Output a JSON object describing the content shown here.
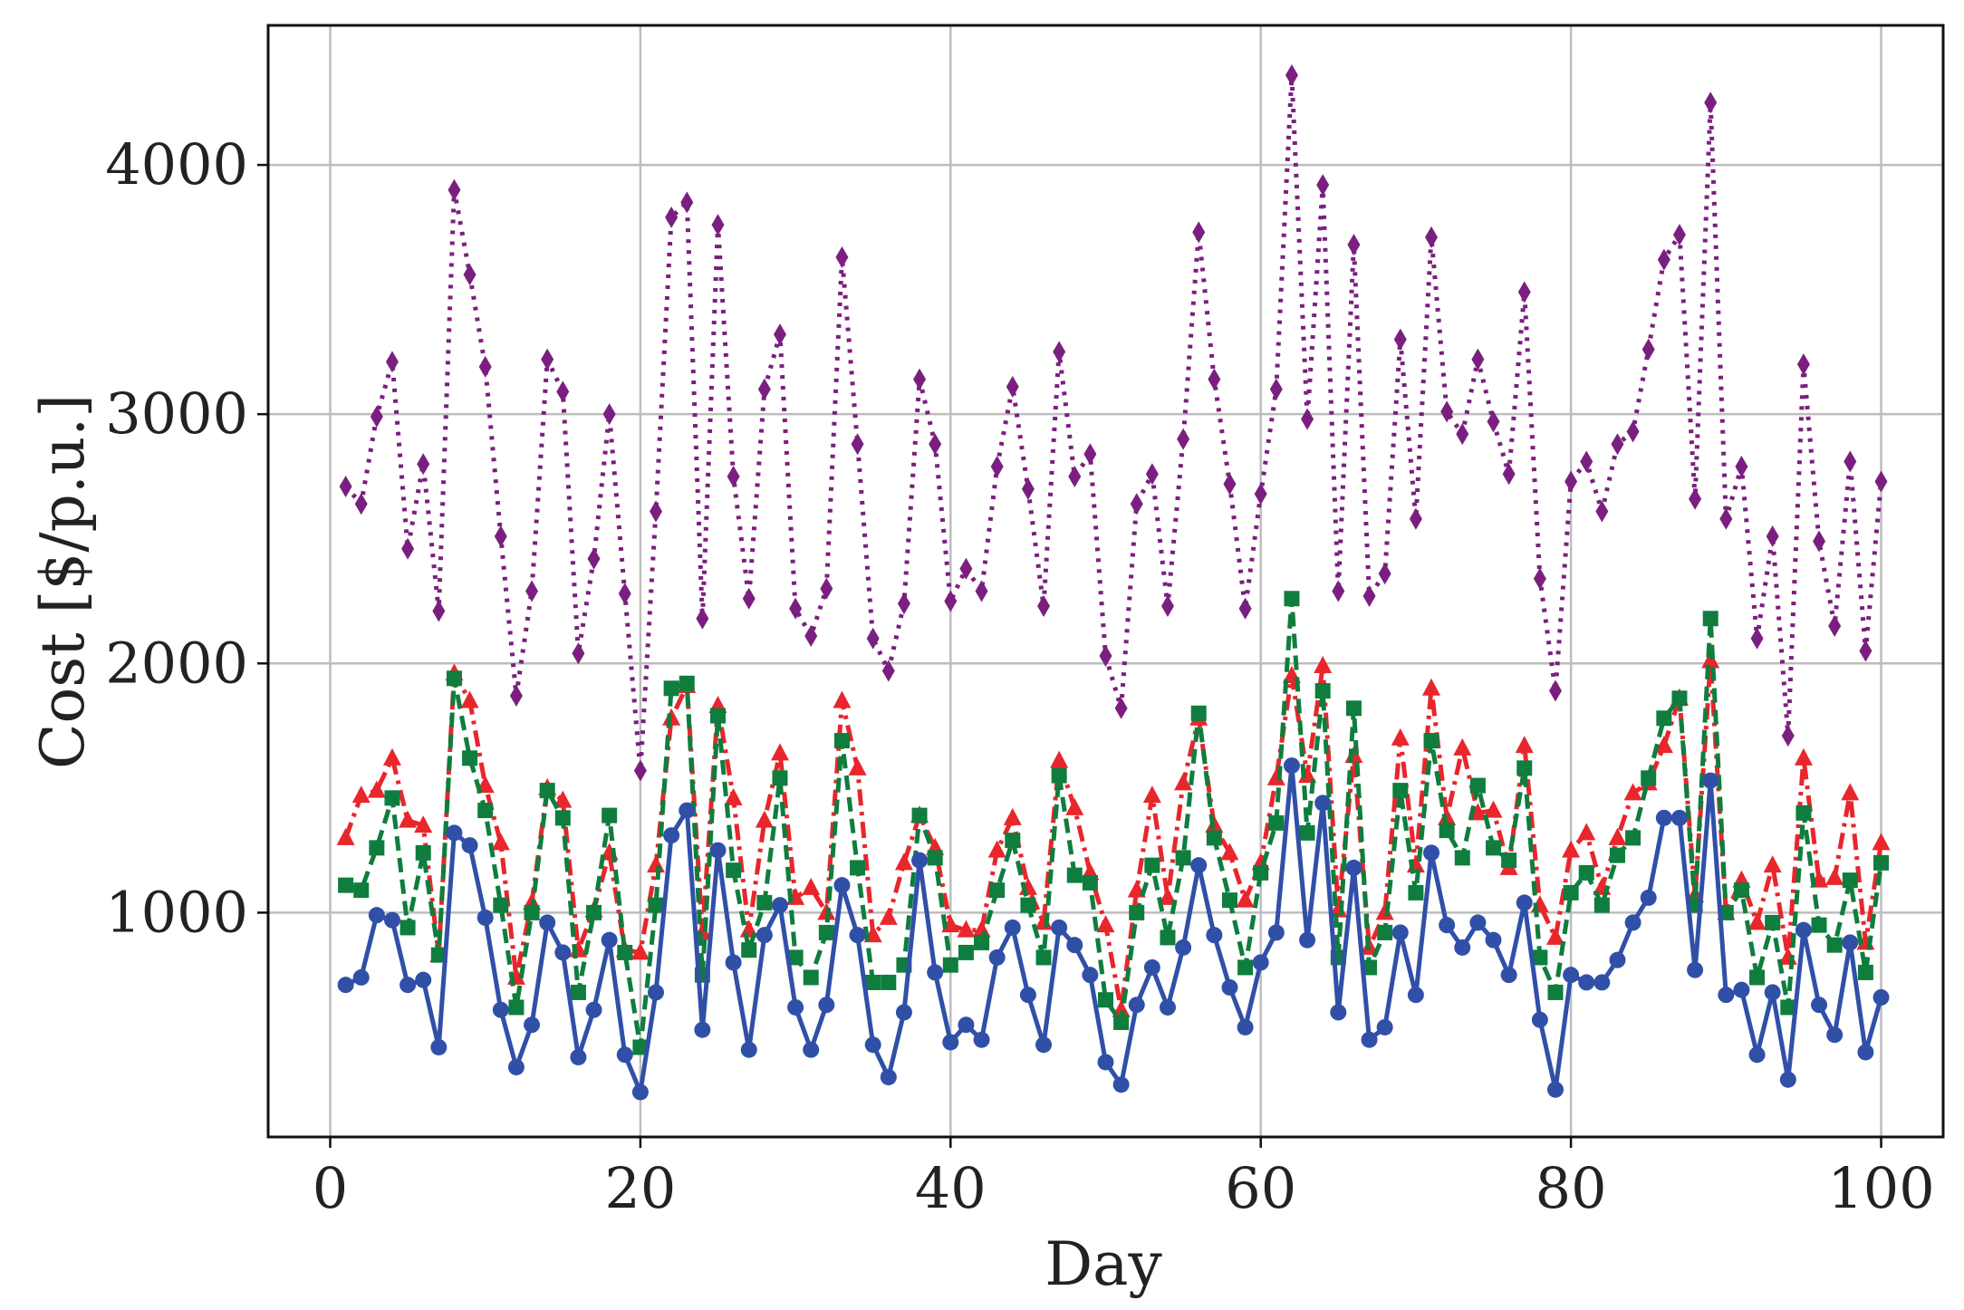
{
  "chart_data": {
    "type": "line",
    "title": "",
    "xlabel": "Day",
    "ylabel": "Cost [$/p.u.]",
    "xlim": [
      -4,
      104
    ],
    "ylim": [
      100,
      4560
    ],
    "xticks": [
      0,
      20,
      40,
      60,
      80,
      100
    ],
    "yticks": [
      1000,
      2000,
      3000,
      4000
    ],
    "xtick_labels": [
      "0",
      "20",
      "40",
      "60",
      "80",
      "100"
    ],
    "ytick_labels": [
      "1000",
      "2000",
      "3000",
      "4000"
    ],
    "grid": true,
    "legend": "none",
    "x": [
      1,
      2,
      3,
      4,
      5,
      6,
      7,
      8,
      9,
      10,
      11,
      12,
      13,
      14,
      15,
      16,
      17,
      18,
      19,
      20,
      21,
      22,
      23,
      24,
      25,
      26,
      27,
      28,
      29,
      30,
      31,
      32,
      33,
      34,
      35,
      36,
      37,
      38,
      39,
      40,
      41,
      42,
      43,
      44,
      45,
      46,
      47,
      48,
      49,
      50,
      51,
      52,
      53,
      54,
      55,
      56,
      57,
      58,
      59,
      60,
      61,
      62,
      63,
      64,
      65,
      66,
      67,
      68,
      69,
      70,
      71,
      72,
      73,
      74,
      75,
      76,
      77,
      78,
      79,
      80,
      81,
      82,
      83,
      84,
      85,
      86,
      87,
      88,
      89,
      90,
      91,
      92,
      93,
      94,
      95,
      96,
      97,
      98,
      99,
      100
    ],
    "series": [
      {
        "name": "purple-diamond-dotted",
        "color": "#7a1f7f",
        "marker": "diamond",
        "dash": "dotted",
        "values": [
          2710,
          2640,
          2990,
          3210,
          2460,
          2800,
          2210,
          3900,
          3560,
          3190,
          2510,
          1870,
          2290,
          3220,
          3090,
          2040,
          2420,
          3000,
          2280,
          1570,
          2610,
          3790,
          3850,
          2180,
          3760,
          2750,
          2260,
          3100,
          3320,
          2220,
          2110,
          2300,
          3630,
          2880,
          2100,
          1970,
          2240,
          3140,
          2880,
          2250,
          2380,
          2290,
          2790,
          3110,
          2700,
          2230,
          3250,
          2750,
          2840,
          2030,
          1820,
          2640,
          2760,
          2230,
          2900,
          3730,
          3140,
          2720,
          2220,
          2680,
          3100,
          4360,
          2980,
          3920,
          2290,
          3680,
          2270,
          2360,
          3300,
          2580,
          3710,
          3010,
          2920,
          3220,
          2970,
          2760,
          3490,
          2340,
          1890,
          2730,
          2810,
          2610,
          2880,
          2930,
          3260,
          3620,
          3720,
          2660,
          4250,
          2580,
          2790,
          2100,
          2510,
          1710,
          3200,
          2490,
          2150,
          2810,
          2050,
          2730
        ]
      },
      {
        "name": "red-triangle-dashdot",
        "color": "#e8262c",
        "marker": "triangle",
        "dash": "dashdot",
        "values": [
          1300,
          1470,
          1490,
          1620,
          1370,
          1350,
          830,
          1960,
          1850,
          1510,
          1280,
          740,
          1040,
          1500,
          1450,
          850,
          1010,
          1240,
          850,
          840,
          1190,
          1780,
          1910,
          920,
          1830,
          1460,
          930,
          1370,
          1640,
          1060,
          1100,
          1000,
          1850,
          1580,
          910,
          980,
          1200,
          1390,
          1260,
          950,
          930,
          930,
          1250,
          1380,
          1100,
          960,
          1610,
          1420,
          1160,
          950,
          610,
          1090,
          1470,
          1060,
          1520,
          1780,
          1350,
          1240,
          1050,
          1200,
          1540,
          1950,
          1550,
          1990,
          1010,
          1630,
          860,
          1000,
          1700,
          1190,
          1900,
          1380,
          1660,
          1400,
          1410,
          1180,
          1670,
          1030,
          900,
          1250,
          1320,
          1100,
          1300,
          1480,
          1520,
          1670,
          1860,
          1070,
          2010,
          1000,
          1130,
          960,
          1190,
          820,
          1620,
          1130,
          1140,
          1480,
          880,
          1280
        ]
      },
      {
        "name": "green-square-dashed",
        "color": "#0f7d3d",
        "marker": "square",
        "dash": "dashed",
        "values": [
          1110,
          1090,
          1260,
          1460,
          940,
          1240,
          830,
          1940,
          1620,
          1410,
          1030,
          620,
          1000,
          1490,
          1380,
          680,
          1000,
          1390,
          840,
          460,
          1030,
          1900,
          1920,
          750,
          1790,
          1170,
          850,
          1040,
          1540,
          820,
          740,
          920,
          1690,
          1180,
          720,
          720,
          790,
          1390,
          1220,
          790,
          840,
          880,
          1090,
          1290,
          1030,
          820,
          1550,
          1150,
          1120,
          650,
          560,
          1000,
          1190,
          900,
          1220,
          1800,
          1300,
          1050,
          780,
          1160,
          1360,
          2260,
          1320,
          1890,
          820,
          1820,
          780,
          920,
          1490,
          1080,
          1690,
          1330,
          1220,
          1510,
          1260,
          1210,
          1580,
          820,
          680,
          1080,
          1160,
          1030,
          1230,
          1300,
          1540,
          1780,
          1860,
          1030,
          2180,
          1000,
          1090,
          740,
          960,
          620,
          1400,
          950,
          870,
          1130,
          760,
          1200
        ]
      },
      {
        "name": "blue-circle-solid",
        "color": "#3050a8",
        "marker": "circle",
        "dash": "solid",
        "values": [
          710,
          740,
          990,
          970,
          710,
          730,
          460,
          1320,
          1270,
          980,
          610,
          380,
          550,
          960,
          840,
          420,
          610,
          890,
          430,
          280,
          680,
          1310,
          1410,
          530,
          1250,
          800,
          450,
          910,
          1030,
          620,
          450,
          630,
          1110,
          910,
          470,
          340,
          600,
          1210,
          760,
          480,
          550,
          490,
          820,
          940,
          670,
          470,
          940,
          870,
          750,
          400,
          310,
          630,
          780,
          620,
          860,
          1190,
          910,
          700,
          540,
          800,
          920,
          1590,
          890,
          1440,
          600,
          1180,
          490,
          540,
          920,
          670,
          1240,
          950,
          860,
          960,
          890,
          750,
          1040,
          570,
          290,
          750,
          720,
          720,
          810,
          960,
          1060,
          1380,
          1380,
          770,
          1530,
          670,
          690,
          430,
          680,
          330,
          930,
          630,
          510,
          880,
          440,
          660
        ]
      }
    ]
  }
}
